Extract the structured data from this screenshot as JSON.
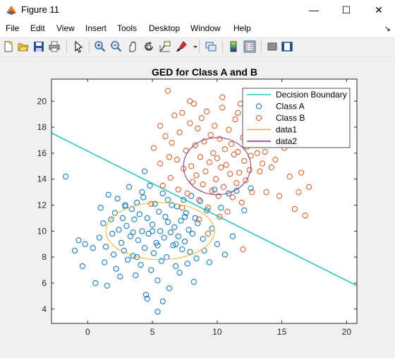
{
  "window": {
    "title": "Figure 11",
    "minimize": "—",
    "maximize": "☐",
    "close": "✕"
  },
  "menu": {
    "items": [
      "File",
      "Edit",
      "View",
      "Insert",
      "Tools",
      "Desktop",
      "Window",
      "Help"
    ],
    "dock_icon": "↘"
  },
  "toolbar": {
    "icons": [
      "new-figure-icon",
      "open-file-icon",
      "save-icon",
      "print-icon",
      "pointer-icon",
      "zoom-in-icon",
      "zoom-out-icon",
      "pan-icon",
      "rotate-3d-icon",
      "data-cursor-icon",
      "brush-icon",
      "link-plot-icon",
      "colorbar-icon",
      "legend-icon",
      "hide-plot-tools-icon",
      "show-plot-tools-icon"
    ]
  },
  "colors": {
    "boundary": "#2bc6c6",
    "classA": "#0072bd",
    "classB": "#d95319",
    "data1": "#edb120",
    "data2": "#7e2f8e"
  },
  "chart_data": {
    "type": "scatter",
    "title": "GED for Class A and B",
    "xlim": [
      -2.8,
      20.8
    ],
    "ylim": [
      2.9,
      21.7
    ],
    "xticks": [
      0,
      5,
      10,
      15,
      20
    ],
    "yticks": [
      4,
      6,
      8,
      10,
      12,
      14,
      16,
      18,
      20
    ],
    "legend": {
      "position": "top-right",
      "entries": [
        "Decision Boundary",
        "Class A",
        "Class B",
        "data1",
        "data2"
      ]
    },
    "series": [
      {
        "name": "Decision Boundary",
        "kind": "line",
        "points": [
          [
            -2.8,
            17.55
          ],
          [
            20.8,
            5.8
          ]
        ]
      },
      {
        "name": "Class A",
        "kind": "scatter",
        "points": [
          [
            -1.7,
            14.2
          ],
          [
            -1.0,
            8.5
          ],
          [
            -0.7,
            9.3
          ],
          [
            -0.4,
            7.3
          ],
          [
            -0.2,
            9.0
          ],
          [
            0.4,
            8.7
          ],
          [
            0.6,
            6.0
          ],
          [
            0.9,
            9.5
          ],
          [
            1.0,
            11.8
          ],
          [
            1.2,
            10.6
          ],
          [
            1.3,
            7.6
          ],
          [
            1.4,
            8.8
          ],
          [
            1.5,
            5.8
          ],
          [
            1.6,
            12.8
          ],
          [
            1.8,
            10.9
          ],
          [
            1.9,
            9.8
          ],
          [
            2.0,
            8.2
          ],
          [
            2.1,
            11.4
          ],
          [
            2.2,
            7.1
          ],
          [
            2.3,
            12.5
          ],
          [
            2.4,
            10.1
          ],
          [
            2.5,
            6.5
          ],
          [
            2.6,
            9.1
          ],
          [
            2.7,
            11.0
          ],
          [
            2.8,
            8.5
          ],
          [
            2.9,
            12.0
          ],
          [
            3.0,
            10.4
          ],
          [
            3.1,
            7.8
          ],
          [
            3.2,
            13.4
          ],
          [
            3.3,
            9.6
          ],
          [
            3.4,
            11.7
          ],
          [
            3.5,
            8.1
          ],
          [
            3.6,
            10.9
          ],
          [
            3.7,
            6.6
          ],
          [
            3.8,
            12.2
          ],
          [
            3.9,
            9.3
          ],
          [
            4.0,
            11.3
          ],
          [
            4.1,
            7.4
          ],
          [
            4.2,
            10.0
          ],
          [
            4.3,
            12.6
          ],
          [
            4.4,
            8.7
          ],
          [
            4.5,
            5.1
          ],
          [
            4.6,
            11.0
          ],
          [
            4.7,
            9.8
          ],
          [
            4.8,
            13.5
          ],
          [
            4.9,
            7.0
          ],
          [
            5.0,
            10.5
          ],
          [
            5.1,
            8.3
          ],
          [
            5.2,
            12.1
          ],
          [
            5.3,
            9.1
          ],
          [
            5.4,
            6.2
          ],
          [
            5.5,
            11.5
          ],
          [
            5.6,
            10.0
          ],
          [
            5.7,
            7.7
          ],
          [
            5.8,
            12.9
          ],
          [
            5.9,
            9.5
          ],
          [
            6.0,
            11.1
          ],
          [
            6.1,
            8.0
          ],
          [
            6.2,
            10.7
          ],
          [
            6.3,
            5.6
          ],
          [
            6.4,
            9.9
          ],
          [
            6.5,
            12.0
          ],
          [
            6.6,
            8.9
          ],
          [
            6.7,
            10.3
          ],
          [
            6.8,
            7.3
          ],
          [
            6.9,
            11.9
          ],
          [
            7.0,
            9.6
          ],
          [
            7.1,
            6.8
          ],
          [
            7.2,
            10.8
          ],
          [
            7.3,
            8.6
          ],
          [
            7.4,
            12.4
          ],
          [
            7.5,
            9.2
          ],
          [
            7.6,
            11.4
          ],
          [
            7.7,
            7.5
          ],
          [
            7.8,
            10.1
          ],
          [
            7.9,
            8.4
          ],
          [
            8.0,
            12.7
          ],
          [
            8.1,
            9.8
          ],
          [
            8.2,
            6.1
          ],
          [
            8.3,
            11.0
          ],
          [
            8.4,
            7.9
          ],
          [
            8.5,
            10.6
          ],
          [
            8.7,
            12.3
          ],
          [
            8.9,
            9.4
          ],
          [
            9.0,
            8.5
          ],
          [
            9.2,
            11.6
          ],
          [
            9.4,
            7.6
          ],
          [
            9.6,
            10.2
          ],
          [
            9.8,
            13.2
          ],
          [
            10.0,
            9.0
          ],
          [
            10.3,
            11.8
          ],
          [
            10.6,
            8.2
          ],
          [
            10.9,
            12.9
          ],
          [
            11.2,
            9.6
          ],
          [
            11.5,
            13.1
          ],
          [
            12.1,
            11.6
          ],
          [
            12.6,
            13.3
          ],
          [
            4.4,
            14.6
          ],
          [
            5.0,
            10.0
          ],
          [
            5.4,
            8.9
          ],
          [
            6.2,
            12.4
          ],
          [
            5.8,
            4.6
          ],
          [
            5.4,
            3.8
          ],
          [
            4.6,
            4.8
          ],
          [
            3.5,
            9.9
          ],
          [
            2.9,
            11.9
          ],
          [
            6.8,
            9.0
          ],
          [
            7.5,
            11.1
          ],
          [
            4.2,
            13.0
          ],
          [
            3.8,
            8.0
          ]
        ]
      },
      {
        "name": "Class B",
        "kind": "scatter",
        "points": [
          [
            5.1,
            16.4
          ],
          [
            5.6,
            15.2
          ],
          [
            6.0,
            17.3
          ],
          [
            6.2,
            20.8
          ],
          [
            6.4,
            14.1
          ],
          [
            6.5,
            16.8
          ],
          [
            6.7,
            18.9
          ],
          [
            6.9,
            15.5
          ],
          [
            7.0,
            13.2
          ],
          [
            7.1,
            17.6
          ],
          [
            7.3,
            19.1
          ],
          [
            7.4,
            14.8
          ],
          [
            7.6,
            16.2
          ],
          [
            7.7,
            12.9
          ],
          [
            7.9,
            18.3
          ],
          [
            8.0,
            15.0
          ],
          [
            8.1,
            13.8
          ],
          [
            8.2,
            19.8
          ],
          [
            8.3,
            16.6
          ],
          [
            8.4,
            14.3
          ],
          [
            8.5,
            17.9
          ],
          [
            8.6,
            12.4
          ],
          [
            8.7,
            15.7
          ],
          [
            8.8,
            18.7
          ],
          [
            8.9,
            13.6
          ],
          [
            9.0,
            16.9
          ],
          [
            9.1,
            14.6
          ],
          [
            9.2,
            19.2
          ],
          [
            9.3,
            11.8
          ],
          [
            9.4,
            15.3
          ],
          [
            9.5,
            17.4
          ],
          [
            9.6,
            13.1
          ],
          [
            9.7,
            16.0
          ],
          [
            9.8,
            18.1
          ],
          [
            9.9,
            14.0
          ],
          [
            10.0,
            15.6
          ],
          [
            10.1,
            12.7
          ],
          [
            10.2,
            17.1
          ],
          [
            10.3,
            14.9
          ],
          [
            10.4,
            19.5
          ],
          [
            10.5,
            13.4
          ],
          [
            10.6,
            16.3
          ],
          [
            10.7,
            15.1
          ],
          [
            10.8,
            11.5
          ],
          [
            10.9,
            17.8
          ],
          [
            11.0,
            14.4
          ],
          [
            11.1,
            16.7
          ],
          [
            11.2,
            12.6
          ],
          [
            11.3,
            15.9
          ],
          [
            11.4,
            18.6
          ],
          [
            11.5,
            13.7
          ],
          [
            11.6,
            16.1
          ],
          [
            11.7,
            14.5
          ],
          [
            11.8,
            19.8
          ],
          [
            11.9,
            12.2
          ],
          [
            12.0,
            17.2
          ],
          [
            12.1,
            15.4
          ],
          [
            12.2,
            13.9
          ],
          [
            12.3,
            16.5
          ],
          [
            12.4,
            18.2
          ],
          [
            12.5,
            14.7
          ],
          [
            12.6,
            15.8
          ],
          [
            12.7,
            13.0
          ],
          [
            12.9,
            17.5
          ],
          [
            13.1,
            16.0
          ],
          [
            13.3,
            14.6
          ],
          [
            13.5,
            15.2
          ],
          [
            13.7,
            16.1
          ],
          [
            13.8,
            13.0
          ],
          [
            14.0,
            17.0
          ],
          [
            14.2,
            14.9
          ],
          [
            14.5,
            15.5
          ],
          [
            14.8,
            12.7
          ],
          [
            15.2,
            16.4
          ],
          [
            15.6,
            14.2
          ],
          [
            16.0,
            11.7
          ],
          [
            16.3,
            13.0
          ],
          [
            16.5,
            14.5
          ],
          [
            16.8,
            11.2
          ],
          [
            17.1,
            13.4
          ],
          [
            12.0,
            8.6
          ],
          [
            9.3,
            9.8
          ],
          [
            8.6,
            10.9
          ],
          [
            7.3,
            11.8
          ],
          [
            5.8,
            13.5
          ],
          [
            4.9,
            12.1
          ],
          [
            6.3,
            15.7
          ],
          [
            5.6,
            18.1
          ],
          [
            10.2,
            11.1
          ],
          [
            10.4,
            20.3
          ],
          [
            11.6,
            19.1
          ],
          [
            7.9,
            20.0
          ]
        ]
      },
      {
        "name": "data1",
        "kind": "ellipse",
        "center": [
          5.6,
          10.0
        ],
        "rx": 4.2,
        "ry": 2.2,
        "angle_deg": 0
      },
      {
        "name": "data2",
        "kind": "ellipse",
        "center": [
          10.0,
          15.0
        ],
        "rx": 2.6,
        "ry": 2.2,
        "angle_deg": 0
      }
    ]
  }
}
